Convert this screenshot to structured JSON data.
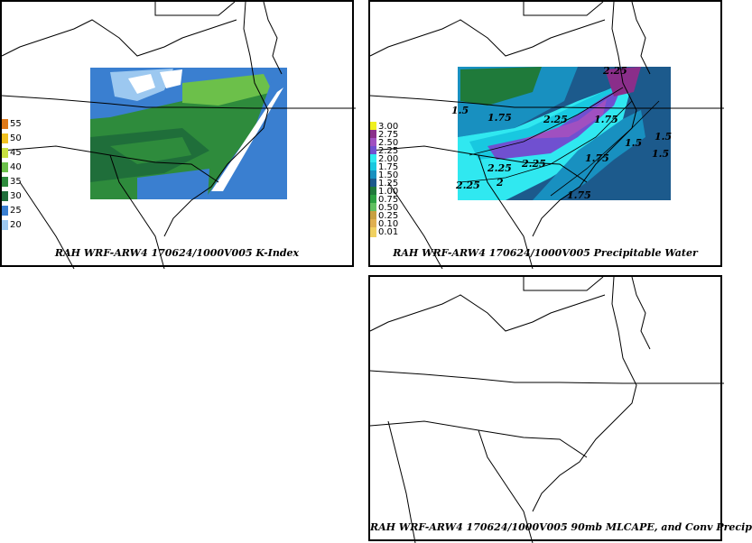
{
  "panels": [
    {
      "id": "k-index",
      "caption": "RAH WRF-ARW4 170624/1000V005  K-Index",
      "legend": [
        {
          "label": "55",
          "color": "#e07a1a"
        },
        {
          "label": "50",
          "color": "#f0c020"
        },
        {
          "label": "45",
          "color": "#c8e040"
        },
        {
          "label": "40",
          "color": "#6cc04a"
        },
        {
          "label": "35",
          "color": "#2e8b3c"
        },
        {
          "label": "30",
          "color": "#1f6e3a"
        },
        {
          "label": "25",
          "color": "#3a7fd0"
        },
        {
          "label": "20",
          "color": "#9cc8f0"
        }
      ]
    },
    {
      "id": "precipitable-water",
      "caption": "RAH WRF-ARW4 170624/1000V005  Precipitable Water",
      "legend": [
        {
          "label": "3.00",
          "color": "#f0f020"
        },
        {
          "label": "2.75",
          "color": "#8a2e8a"
        },
        {
          "label": "2.50",
          "color": "#a050c0"
        },
        {
          "label": "2.25",
          "color": "#7050d0"
        },
        {
          "label": "2.00",
          "color": "#30e8f0"
        },
        {
          "label": "1.75",
          "color": "#18c8e0"
        },
        {
          "label": "1.50",
          "color": "#1890c0"
        },
        {
          "label": "1.25",
          "color": "#1c5a8c"
        },
        {
          "label": "1.00",
          "color": "#1f7a3a"
        },
        {
          "label": "0.75",
          "color": "#2aa040"
        },
        {
          "label": "0.50",
          "color": "#60c060"
        },
        {
          "label": "0.25",
          "color": "#c8a040"
        },
        {
          "label": "0.10",
          "color": "#e0b050"
        },
        {
          "label": "0.01",
          "color": "#f0d060"
        }
      ],
      "contour_labels": [
        "2.25",
        "2.25",
        "2.25",
        "2",
        "2.25",
        "1.75",
        "1.75",
        "1.75",
        "1.5",
        "1.5",
        "1.5",
        "2.25",
        "1.75",
        "1.5"
      ]
    },
    {
      "id": "mlcape",
      "caption": "RAH WRF-ARW4 170624/1000V005  90mb MLCAPE, and Conv Precip"
    }
  ]
}
